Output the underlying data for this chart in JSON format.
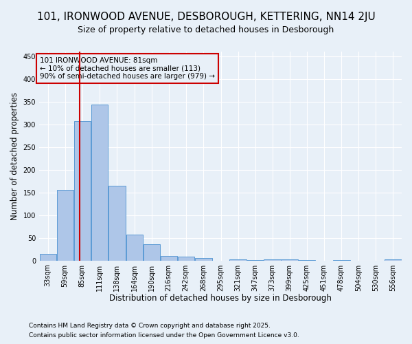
{
  "title": "101, IRONWOOD AVENUE, DESBOROUGH, KETTERING, NN14 2JU",
  "subtitle": "Size of property relative to detached houses in Desborough",
  "xlabel": "Distribution of detached houses by size in Desborough",
  "ylabel": "Number of detached properties",
  "footnote1": "Contains HM Land Registry data © Crown copyright and database right 2025.",
  "footnote2": "Contains public sector information licensed under the Open Government Licence v3.0.",
  "annotation_title": "101 IRONWOOD AVENUE: 81sqm",
  "annotation_line1": "← 10% of detached houses are smaller (113)",
  "annotation_line2": "90% of semi-detached houses are larger (979) →",
  "property_size": 81,
  "bar_edge_color": "#5b9bd5",
  "bar_face_color": "#aec6e8",
  "vline_color": "#cc0000",
  "vline_x": 81,
  "categories": [
    "33sqm",
    "59sqm",
    "85sqm",
    "111sqm",
    "138sqm",
    "164sqm",
    "190sqm",
    "216sqm",
    "242sqm",
    "268sqm",
    "295sqm",
    "321sqm",
    "347sqm",
    "373sqm",
    "399sqm",
    "425sqm",
    "451sqm",
    "478sqm",
    "504sqm",
    "530sqm",
    "556sqm"
  ],
  "bin_edges": [
    20,
    46,
    72,
    98,
    124,
    151,
    177,
    203,
    229,
    255,
    282,
    308,
    334,
    360,
    386,
    412,
    438,
    464,
    491,
    517,
    543,
    569
  ],
  "values": [
    15,
    155,
    307,
    343,
    165,
    57,
    35,
    10,
    8,
    5,
    0,
    3,
    1,
    2,
    2,
    1,
    0,
    1,
    0,
    0,
    2
  ],
  "ylim": [
    0,
    460
  ],
  "yticks": [
    0,
    50,
    100,
    150,
    200,
    250,
    300,
    350,
    400,
    450
  ],
  "background_color": "#e8f0f8",
  "grid_color": "#ffffff",
  "title_fontsize": 11,
  "subtitle_fontsize": 9,
  "axis_label_fontsize": 8.5,
  "tick_fontsize": 7,
  "annotation_fontsize": 7.5,
  "footnote_fontsize": 6.5
}
